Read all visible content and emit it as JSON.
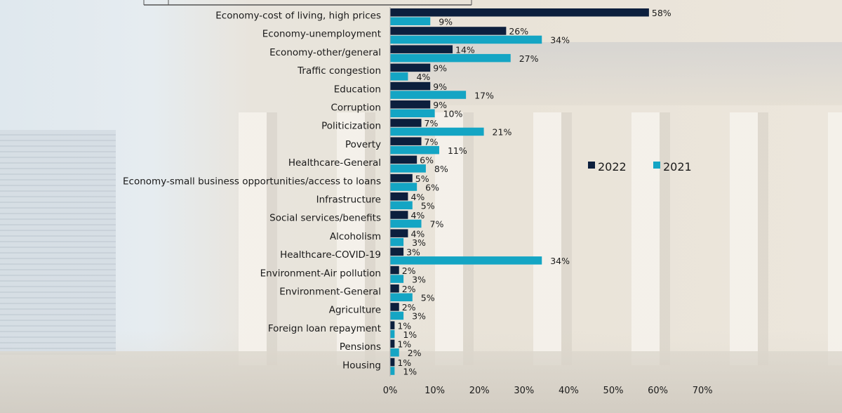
{
  "chart_data": {
    "type": "bar",
    "orientation": "horizontal",
    "title": "",
    "xlabel": "",
    "ylabel": "",
    "xlim": [
      0,
      70
    ],
    "x_ticks": [
      "0%",
      "10%",
      "20%",
      "30%",
      "40%",
      "50%",
      "60%",
      "70%"
    ],
    "grid": false,
    "legend_position": "right",
    "categories": [
      "Economy-cost of living, high prices",
      "Economy-unemployment",
      "Economy-other/general",
      "Traffic congestion",
      "Education",
      "Corruption",
      "Politicization",
      "Poverty",
      "Healthcare-General",
      "Economy-small business opportunities/access to loans",
      "Infrastructure",
      "Social services/benefits",
      "Alcoholism",
      "Healthcare-COVID-19",
      "Environment-Air pollution",
      "Environment-General",
      "Agriculture",
      "Foreign loan repayment",
      "Pensions",
      "Housing"
    ],
    "series": [
      {
        "name": "2022",
        "color": "#0c1f3d",
        "values": [
          58,
          26,
          14,
          9,
          9,
          9,
          7,
          7,
          6,
          5,
          4,
          4,
          4,
          3,
          2,
          2,
          2,
          1,
          1,
          1
        ]
      },
      {
        "name": "2021",
        "color": "#14a5c4",
        "values": [
          9,
          34,
          27,
          4,
          17,
          10,
          21,
          11,
          8,
          6,
          5,
          7,
          3,
          34,
          3,
          5,
          3,
          1,
          2,
          1
        ]
      }
    ],
    "value_suffix": "%"
  }
}
